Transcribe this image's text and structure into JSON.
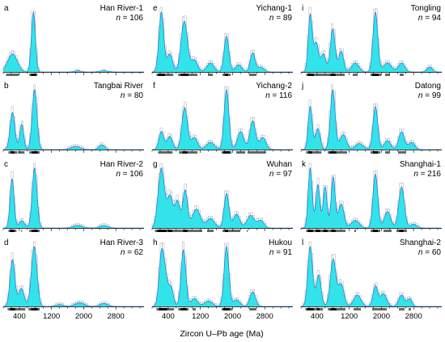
{
  "colors": {
    "kde_fill": "#33e3ea",
    "kde_line": "#2b7fd6",
    "hist": "#9a9a9a",
    "rug": "#000000"
  },
  "chart_data": {
    "type": "area",
    "x_axis_title": "Zircon U–Pb age (Ma)",
    "xlim": [
      0,
      3500
    ],
    "x_ticks": [
      400,
      1200,
      2000,
      2800
    ],
    "panels": [
      {
        "letter": "a",
        "name": "Han River-1",
        "n_label": "n",
        "n_value": "= 106",
        "peaks": [
          [
            230,
            120,
            0.3
          ],
          [
            750,
            50,
            1.0
          ],
          [
            1850,
            80,
            0.02
          ],
          [
            2500,
            100,
            0.02
          ]
        ]
      },
      {
        "letter": "b",
        "name": "Tangbai River",
        "n_label": "n",
        "n_value": "= 80",
        "peaks": [
          [
            230,
            60,
            0.62
          ],
          [
            460,
            50,
            0.42
          ],
          [
            780,
            60,
            1.0
          ],
          [
            1800,
            120,
            0.05
          ],
          [
            2450,
            70,
            0.08
          ]
        ]
      },
      {
        "letter": "c",
        "name": "Han River-2",
        "n_label": "n",
        "n_value": "= 106",
        "peaks": [
          [
            220,
            50,
            0.82
          ],
          [
            460,
            70,
            0.12
          ],
          [
            780,
            60,
            1.0
          ],
          [
            1850,
            120,
            0.04
          ],
          [
            2500,
            100,
            0.04
          ]
        ]
      },
      {
        "letter": "d",
        "name": "Han River-3",
        "n_label": "n",
        "n_value": "= 62",
        "peaks": [
          [
            230,
            60,
            0.78
          ],
          [
            450,
            70,
            0.3
          ],
          [
            770,
            70,
            1.0
          ],
          [
            1400,
            100,
            0.03
          ],
          [
            1900,
            120,
            0.06
          ],
          [
            2500,
            100,
            0.05
          ]
        ]
      },
      {
        "letter": "e",
        "name": "Yichang-1",
        "n_label": "n",
        "n_value": "= 89",
        "peaks": [
          [
            230,
            60,
            1.0
          ],
          [
            440,
            70,
            0.3
          ],
          [
            800,
            80,
            0.85
          ],
          [
            1050,
            80,
            0.2
          ],
          [
            1450,
            90,
            0.15
          ],
          [
            1850,
            60,
            0.6
          ],
          [
            2150,
            80,
            0.12
          ],
          [
            2500,
            60,
            0.32
          ],
          [
            2700,
            80,
            0.08
          ]
        ]
      },
      {
        "letter": "f",
        "name": "Yichang-2",
        "n_label": "n",
        "n_value": "= 116",
        "peaks": [
          [
            230,
            60,
            0.3
          ],
          [
            440,
            70,
            0.22
          ],
          [
            810,
            70,
            0.7
          ],
          [
            1050,
            80,
            0.2
          ],
          [
            1450,
            100,
            0.12
          ],
          [
            1850,
            60,
            1.0
          ],
          [
            2200,
            80,
            0.3
          ],
          [
            2500,
            70,
            0.48
          ],
          [
            2750,
            80,
            0.2
          ]
        ]
      },
      {
        "letter": "g",
        "name": "Wuhan",
        "n_label": "n",
        "n_value": "= 97",
        "peaks": [
          [
            230,
            80,
            0.95
          ],
          [
            450,
            70,
            0.5
          ],
          [
            630,
            60,
            0.42
          ],
          [
            820,
            60,
            0.6
          ],
          [
            1100,
            100,
            0.3
          ],
          [
            1450,
            100,
            0.15
          ],
          [
            1850,
            60,
            0.55
          ],
          [
            2100,
            80,
            0.22
          ],
          [
            2450,
            90,
            0.2
          ],
          [
            2700,
            80,
            0.12
          ]
        ]
      },
      {
        "letter": "h",
        "name": "Hukou",
        "n_label": "n",
        "n_value": "= 91",
        "peaks": [
          [
            230,
            60,
            0.75
          ],
          [
            330,
            60,
            0.4
          ],
          [
            470,
            60,
            0.28
          ],
          [
            780,
            60,
            0.85
          ],
          [
            1050,
            80,
            0.12
          ],
          [
            1400,
            100,
            0.08
          ],
          [
            1850,
            60,
            0.9
          ],
          [
            2100,
            80,
            0.1
          ],
          [
            2500,
            70,
            0.22
          ]
        ]
      },
      {
        "letter": "i",
        "name": "Tongling",
        "n_label": "n",
        "n_value": "= 94",
        "peaks": [
          [
            230,
            50,
            0.95
          ],
          [
            380,
            60,
            0.48
          ],
          [
            560,
            60,
            0.3
          ],
          [
            790,
            60,
            0.72
          ],
          [
            1000,
            60,
            0.35
          ],
          [
            1350,
            90,
            0.15
          ],
          [
            1850,
            60,
            1.0
          ],
          [
            2150,
            100,
            0.15
          ],
          [
            2500,
            80,
            0.15
          ],
          [
            3200,
            70,
            0.08
          ]
        ]
      },
      {
        "letter": "j",
        "name": "Datong",
        "n_label": "n",
        "n_value": "= 99",
        "peaks": [
          [
            230,
            50,
            0.72
          ],
          [
            420,
            60,
            0.35
          ],
          [
            790,
            60,
            1.0
          ],
          [
            1050,
            80,
            0.25
          ],
          [
            1450,
            100,
            0.1
          ],
          [
            1850,
            60,
            0.72
          ],
          [
            2150,
            80,
            0.15
          ],
          [
            2500,
            70,
            0.3
          ],
          [
            2750,
            80,
            0.12
          ]
        ]
      },
      {
        "letter": "k",
        "name": "Shanghai-1",
        "n_label": "n",
        "n_value": "= 216",
        "peaks": [
          [
            230,
            50,
            0.8
          ],
          [
            420,
            50,
            0.58
          ],
          [
            600,
            50,
            0.55
          ],
          [
            800,
            50,
            0.68
          ],
          [
            1000,
            70,
            0.32
          ],
          [
            1350,
            100,
            0.1
          ],
          [
            1850,
            60,
            0.72
          ],
          [
            2150,
            80,
            0.22
          ],
          [
            2500,
            70,
            0.55
          ],
          [
            2800,
            80,
            0.05
          ]
        ]
      },
      {
        "letter": "l",
        "name": "Shanghai-2",
        "n_label": "n",
        "n_value": "= 60",
        "peaks": [
          [
            230,
            60,
            0.95
          ],
          [
            440,
            60,
            0.5
          ],
          [
            800,
            70,
            0.75
          ],
          [
            1000,
            70,
            0.35
          ],
          [
            1400,
            90,
            0.18
          ],
          [
            1850,
            60,
            0.32
          ],
          [
            2050,
            80,
            0.2
          ],
          [
            2500,
            70,
            0.18
          ],
          [
            2700,
            60,
            0.12
          ]
        ]
      }
    ]
  }
}
